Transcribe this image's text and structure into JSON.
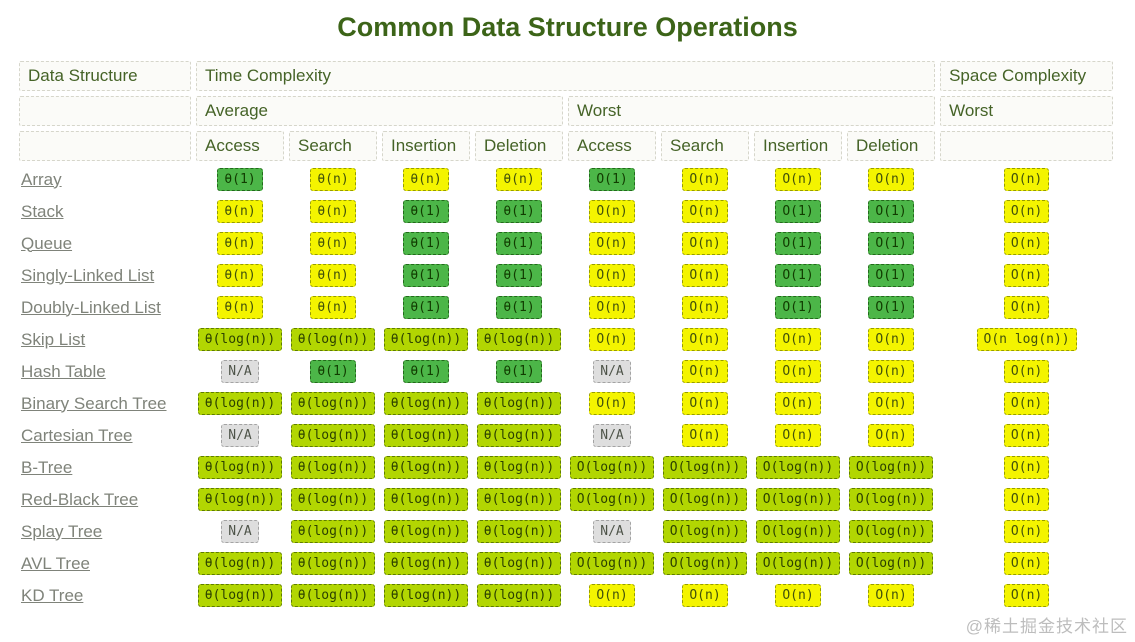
{
  "title": "Common Data Structure Operations",
  "watermark": "@稀土掘金技术社区",
  "colors": {
    "excellent_green": "#4cb648",
    "good_yellow_green": "#b2d602",
    "fair_yellow": "#f4f400",
    "na_gray": "#dedede",
    "heading_green": "#456327",
    "title_green": "#3c6418",
    "link_gray": "#7f837a"
  },
  "table": {
    "header": {
      "data_structure": "Data Structure",
      "time_complexity": "Time Complexity",
      "space_complexity": "Space Complexity",
      "average": "Average",
      "worst": "Worst",
      "space_worst": "Worst",
      "ops": [
        "Access",
        "Search",
        "Insertion",
        "Deletion"
      ]
    },
    "rows": [
      {
        "name": "Array",
        "avg": [
          {
            "t": "θ(1)",
            "c": "green"
          },
          {
            "t": "θ(n)",
            "c": "yellow"
          },
          {
            "t": "θ(n)",
            "c": "yellow"
          },
          {
            "t": "θ(n)",
            "c": "yellow"
          }
        ],
        "worst": [
          {
            "t": "O(1)",
            "c": "green"
          },
          {
            "t": "O(n)",
            "c": "yellow"
          },
          {
            "t": "O(n)",
            "c": "yellow"
          },
          {
            "t": "O(n)",
            "c": "yellow"
          }
        ],
        "space": {
          "t": "O(n)",
          "c": "yellow"
        }
      },
      {
        "name": "Stack",
        "avg": [
          {
            "t": "θ(n)",
            "c": "yellow"
          },
          {
            "t": "θ(n)",
            "c": "yellow"
          },
          {
            "t": "θ(1)",
            "c": "green"
          },
          {
            "t": "θ(1)",
            "c": "green"
          }
        ],
        "worst": [
          {
            "t": "O(n)",
            "c": "yellow"
          },
          {
            "t": "O(n)",
            "c": "yellow"
          },
          {
            "t": "O(1)",
            "c": "green"
          },
          {
            "t": "O(1)",
            "c": "green"
          }
        ],
        "space": {
          "t": "O(n)",
          "c": "yellow"
        }
      },
      {
        "name": "Queue",
        "avg": [
          {
            "t": "θ(n)",
            "c": "yellow"
          },
          {
            "t": "θ(n)",
            "c": "yellow"
          },
          {
            "t": "θ(1)",
            "c": "green"
          },
          {
            "t": "θ(1)",
            "c": "green"
          }
        ],
        "worst": [
          {
            "t": "O(n)",
            "c": "yellow"
          },
          {
            "t": "O(n)",
            "c": "yellow"
          },
          {
            "t": "O(1)",
            "c": "green"
          },
          {
            "t": "O(1)",
            "c": "green"
          }
        ],
        "space": {
          "t": "O(n)",
          "c": "yellow"
        }
      },
      {
        "name": "Singly-Linked List",
        "avg": [
          {
            "t": "θ(n)",
            "c": "yellow"
          },
          {
            "t": "θ(n)",
            "c": "yellow"
          },
          {
            "t": "θ(1)",
            "c": "green"
          },
          {
            "t": "θ(1)",
            "c": "green"
          }
        ],
        "worst": [
          {
            "t": "O(n)",
            "c": "yellow"
          },
          {
            "t": "O(n)",
            "c": "yellow"
          },
          {
            "t": "O(1)",
            "c": "green"
          },
          {
            "t": "O(1)",
            "c": "green"
          }
        ],
        "space": {
          "t": "O(n)",
          "c": "yellow"
        }
      },
      {
        "name": "Doubly-Linked List",
        "avg": [
          {
            "t": "θ(n)",
            "c": "yellow"
          },
          {
            "t": "θ(n)",
            "c": "yellow"
          },
          {
            "t": "θ(1)",
            "c": "green"
          },
          {
            "t": "θ(1)",
            "c": "green"
          }
        ],
        "worst": [
          {
            "t": "O(n)",
            "c": "yellow"
          },
          {
            "t": "O(n)",
            "c": "yellow"
          },
          {
            "t": "O(1)",
            "c": "green"
          },
          {
            "t": "O(1)",
            "c": "green"
          }
        ],
        "space": {
          "t": "O(n)",
          "c": "yellow"
        }
      },
      {
        "name": "Skip List",
        "avg": [
          {
            "t": "θ(log(n))",
            "c": "ygreen"
          },
          {
            "t": "θ(log(n))",
            "c": "ygreen"
          },
          {
            "t": "θ(log(n))",
            "c": "ygreen"
          },
          {
            "t": "θ(log(n))",
            "c": "ygreen"
          }
        ],
        "worst": [
          {
            "t": "O(n)",
            "c": "yellow"
          },
          {
            "t": "O(n)",
            "c": "yellow"
          },
          {
            "t": "O(n)",
            "c": "yellow"
          },
          {
            "t": "O(n)",
            "c": "yellow"
          }
        ],
        "space": {
          "t": "O(n log(n))",
          "c": "yellow"
        }
      },
      {
        "name": "Hash Table",
        "avg": [
          {
            "t": "N/A",
            "c": "gray"
          },
          {
            "t": "θ(1)",
            "c": "green"
          },
          {
            "t": "θ(1)",
            "c": "green"
          },
          {
            "t": "θ(1)",
            "c": "green"
          }
        ],
        "worst": [
          {
            "t": "N/A",
            "c": "gray"
          },
          {
            "t": "O(n)",
            "c": "yellow"
          },
          {
            "t": "O(n)",
            "c": "yellow"
          },
          {
            "t": "O(n)",
            "c": "yellow"
          }
        ],
        "space": {
          "t": "O(n)",
          "c": "yellow"
        }
      },
      {
        "name": "Binary Search Tree",
        "avg": [
          {
            "t": "θ(log(n))",
            "c": "ygreen"
          },
          {
            "t": "θ(log(n))",
            "c": "ygreen"
          },
          {
            "t": "θ(log(n))",
            "c": "ygreen"
          },
          {
            "t": "θ(log(n))",
            "c": "ygreen"
          }
        ],
        "worst": [
          {
            "t": "O(n)",
            "c": "yellow"
          },
          {
            "t": "O(n)",
            "c": "yellow"
          },
          {
            "t": "O(n)",
            "c": "yellow"
          },
          {
            "t": "O(n)",
            "c": "yellow"
          }
        ],
        "space": {
          "t": "O(n)",
          "c": "yellow"
        }
      },
      {
        "name": "Cartesian Tree",
        "avg": [
          {
            "t": "N/A",
            "c": "gray"
          },
          {
            "t": "θ(log(n))",
            "c": "ygreen"
          },
          {
            "t": "θ(log(n))",
            "c": "ygreen"
          },
          {
            "t": "θ(log(n))",
            "c": "ygreen"
          }
        ],
        "worst": [
          {
            "t": "N/A",
            "c": "gray"
          },
          {
            "t": "O(n)",
            "c": "yellow"
          },
          {
            "t": "O(n)",
            "c": "yellow"
          },
          {
            "t": "O(n)",
            "c": "yellow"
          }
        ],
        "space": {
          "t": "O(n)",
          "c": "yellow"
        }
      },
      {
        "name": "B-Tree",
        "avg": [
          {
            "t": "θ(log(n))",
            "c": "ygreen"
          },
          {
            "t": "θ(log(n))",
            "c": "ygreen"
          },
          {
            "t": "θ(log(n))",
            "c": "ygreen"
          },
          {
            "t": "θ(log(n))",
            "c": "ygreen"
          }
        ],
        "worst": [
          {
            "t": "O(log(n))",
            "c": "ygreen"
          },
          {
            "t": "O(log(n))",
            "c": "ygreen"
          },
          {
            "t": "O(log(n))",
            "c": "ygreen"
          },
          {
            "t": "O(log(n))",
            "c": "ygreen"
          }
        ],
        "space": {
          "t": "O(n)",
          "c": "yellow"
        }
      },
      {
        "name": "Red-Black Tree",
        "avg": [
          {
            "t": "θ(log(n))",
            "c": "ygreen"
          },
          {
            "t": "θ(log(n))",
            "c": "ygreen"
          },
          {
            "t": "θ(log(n))",
            "c": "ygreen"
          },
          {
            "t": "θ(log(n))",
            "c": "ygreen"
          }
        ],
        "worst": [
          {
            "t": "O(log(n))",
            "c": "ygreen"
          },
          {
            "t": "O(log(n))",
            "c": "ygreen"
          },
          {
            "t": "O(log(n))",
            "c": "ygreen"
          },
          {
            "t": "O(log(n))",
            "c": "ygreen"
          }
        ],
        "space": {
          "t": "O(n)",
          "c": "yellow"
        }
      },
      {
        "name": "Splay Tree",
        "avg": [
          {
            "t": "N/A",
            "c": "gray"
          },
          {
            "t": "θ(log(n))",
            "c": "ygreen"
          },
          {
            "t": "θ(log(n))",
            "c": "ygreen"
          },
          {
            "t": "θ(log(n))",
            "c": "ygreen"
          }
        ],
        "worst": [
          {
            "t": "N/A",
            "c": "gray"
          },
          {
            "t": "O(log(n))",
            "c": "ygreen"
          },
          {
            "t": "O(log(n))",
            "c": "ygreen"
          },
          {
            "t": "O(log(n))",
            "c": "ygreen"
          }
        ],
        "space": {
          "t": "O(n)",
          "c": "yellow"
        }
      },
      {
        "name": "AVL Tree",
        "avg": [
          {
            "t": "θ(log(n))",
            "c": "ygreen"
          },
          {
            "t": "θ(log(n))",
            "c": "ygreen"
          },
          {
            "t": "θ(log(n))",
            "c": "ygreen"
          },
          {
            "t": "θ(log(n))",
            "c": "ygreen"
          }
        ],
        "worst": [
          {
            "t": "O(log(n))",
            "c": "ygreen"
          },
          {
            "t": "O(log(n))",
            "c": "ygreen"
          },
          {
            "t": "O(log(n))",
            "c": "ygreen"
          },
          {
            "t": "O(log(n))",
            "c": "ygreen"
          }
        ],
        "space": {
          "t": "O(n)",
          "c": "yellow"
        }
      },
      {
        "name": "KD Tree",
        "avg": [
          {
            "t": "θ(log(n))",
            "c": "ygreen"
          },
          {
            "t": "θ(log(n))",
            "c": "ygreen"
          },
          {
            "t": "θ(log(n))",
            "c": "ygreen"
          },
          {
            "t": "θ(log(n))",
            "c": "ygreen"
          }
        ],
        "worst": [
          {
            "t": "O(n)",
            "c": "yellow"
          },
          {
            "t": "O(n)",
            "c": "yellow"
          },
          {
            "t": "O(n)",
            "c": "yellow"
          },
          {
            "t": "O(n)",
            "c": "yellow"
          }
        ],
        "space": {
          "t": "O(n)",
          "c": "yellow"
        }
      }
    ]
  }
}
